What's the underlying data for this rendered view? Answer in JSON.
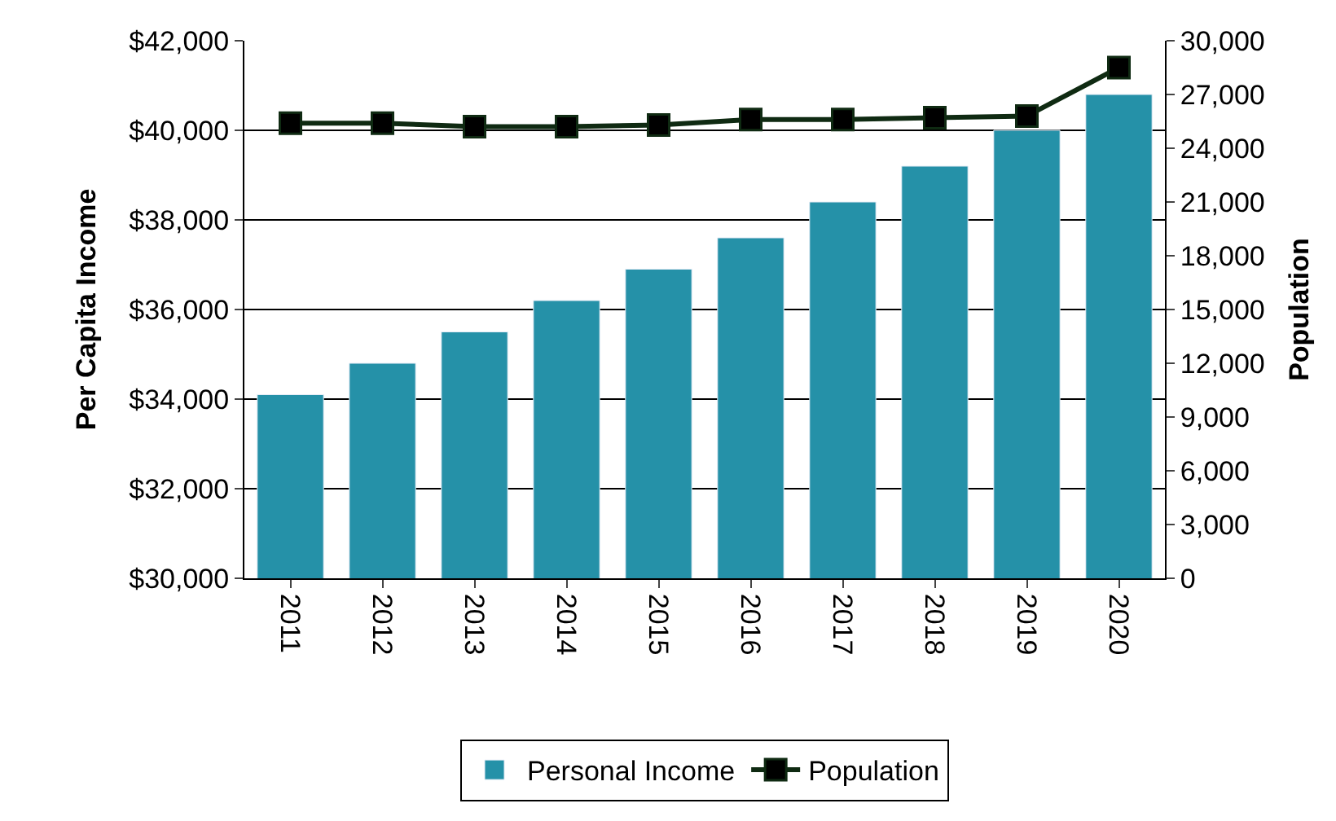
{
  "chart_data": {
    "type": "bar",
    "categories": [
      "2011",
      "2012",
      "2013",
      "2014",
      "2015",
      "2016",
      "2017",
      "2018",
      "2019",
      "2020"
    ],
    "ylabel": "Per Capita Income",
    "y2label": "Population",
    "series": [
      {
        "name": "Personal Income",
        "color": "#2591a8",
        "values": [
          34100,
          34800,
          35500,
          36200,
          36900,
          37600,
          38400,
          39200,
          40000,
          40800
        ]
      },
      {
        "name": "Population",
        "type": "line",
        "axis": "y2",
        "color": "#0f2a12",
        "marker": "square",
        "values": [
          25400,
          25400,
          25200,
          25200,
          25300,
          25600,
          25600,
          25700,
          25800,
          28500
        ]
      }
    ],
    "ylim": [
      30000,
      42000
    ],
    "yticks": [
      {
        "value": 30000,
        "label": "$30,000"
      },
      {
        "value": 32000,
        "label": "$32,000"
      },
      {
        "value": 34000,
        "label": "$34,000"
      },
      {
        "value": 36000,
        "label": "$36,000"
      },
      {
        "value": 38000,
        "label": "$38,000"
      },
      {
        "value": 40000,
        "label": "$40,000"
      },
      {
        "value": 42000,
        "label": "$42,000"
      }
    ],
    "y2lim": [
      0,
      30000
    ],
    "y2ticks": [
      {
        "value": 0,
        "label": "0"
      },
      {
        "value": 3000,
        "label": "3,000"
      },
      {
        "value": 6000,
        "label": "6,000"
      },
      {
        "value": 9000,
        "label": "9,000"
      },
      {
        "value": 12000,
        "label": "12,000"
      },
      {
        "value": 15000,
        "label": "15,000"
      },
      {
        "value": 18000,
        "label": "18,000"
      },
      {
        "value": 21000,
        "label": "21,000"
      },
      {
        "value": 24000,
        "label": "24,000"
      },
      {
        "value": 27000,
        "label": "27,000"
      },
      {
        "value": 30000,
        "label": "30,000"
      }
    ],
    "grid": "y",
    "legend": "bottom"
  }
}
